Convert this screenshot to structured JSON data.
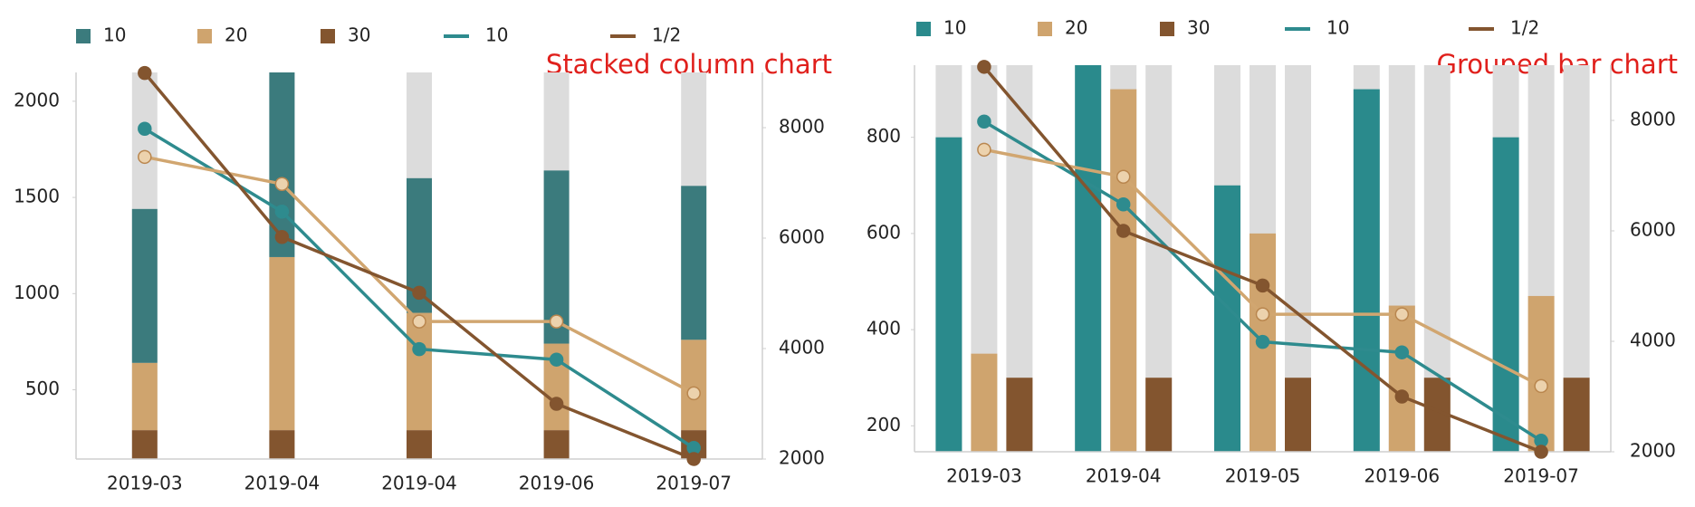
{
  "chart_data": [
    {
      "type": "bar",
      "stacked": true,
      "title": "Stacked column chart",
      "track_color": "#dcdcdc",
      "categories": [
        "2019-03",
        "2019-04",
        "2019-04",
        "2019-06",
        "2019-07"
      ],
      "ylim": [
        140,
        2150
      ],
      "yticks": [
        500,
        1000,
        1500,
        2000
      ],
      "y2lim": [
        2000,
        9000
      ],
      "y2ticks": [
        2000,
        4000,
        6000,
        8000
      ],
      "series": [
        {
          "name": "10",
          "type": "bar",
          "color": "#3b7b7d",
          "values": [
            800,
            960,
            700,
            900,
            800
          ]
        },
        {
          "name": "20",
          "type": "bar",
          "color": "#cfa46e",
          "values": [
            350,
            900,
            610,
            450,
            470
          ]
        },
        {
          "name": "30",
          "type": "bar",
          "color": "#83552f",
          "values": [
            290,
            290,
            290,
            290,
            290
          ]
        },
        {
          "name": "10",
          "type": "line",
          "axis": "y2",
          "color": "#2e8b8e",
          "values": [
            7980,
            6480,
            3990,
            3800,
            2200
          ]
        },
        {
          "type": "line",
          "axis": "y2",
          "color": "#d1a670",
          "marker_style": "hollow",
          "values": [
            7470,
            6980,
            4490,
            4490,
            3190
          ]
        },
        {
          "name": "1/2",
          "type": "line",
          "axis": "y2",
          "color": "#83552f",
          "values": [
            8990,
            6020,
            5010,
            3000,
            2000
          ]
        }
      ]
    },
    {
      "type": "bar",
      "stacked": false,
      "title": "Grouped bar chart",
      "track_color": "#dcdcdc",
      "categories": [
        "2019-03",
        "2019-04",
        "2019-05",
        "2019-06",
        "2019-07"
      ],
      "ylim": [
        146,
        950
      ],
      "yticks": [
        200,
        400,
        600,
        800
      ],
      "y2lim": [
        2000,
        9000
      ],
      "y2ticks": [
        2000,
        4000,
        6000,
        8000
      ],
      "series": [
        {
          "name": "10",
          "type": "bar",
          "color": "#2a8a8c",
          "values": [
            800,
            950,
            700,
            900,
            800
          ]
        },
        {
          "name": "20",
          "type": "bar",
          "color": "#cfa46e",
          "values": [
            350,
            900,
            600,
            450,
            470
          ]
        },
        {
          "name": "30",
          "type": "bar",
          "color": "#83552f",
          "values": [
            300,
            300,
            300,
            300,
            300
          ]
        },
        {
          "name": "10",
          "type": "line",
          "axis": "y2",
          "color": "#2e8b8e",
          "values": [
            7980,
            6480,
            3990,
            3800,
            2200
          ]
        },
        {
          "type": "line",
          "axis": "y2",
          "color": "#d1a670",
          "marker_style": "hollow",
          "values": [
            7470,
            6980,
            4490,
            4490,
            3190
          ]
        },
        {
          "name": "1/2",
          "type": "line",
          "axis": "y2",
          "color": "#83552f",
          "values": [
            8970,
            6000,
            5010,
            3000,
            2000
          ]
        }
      ]
    }
  ]
}
